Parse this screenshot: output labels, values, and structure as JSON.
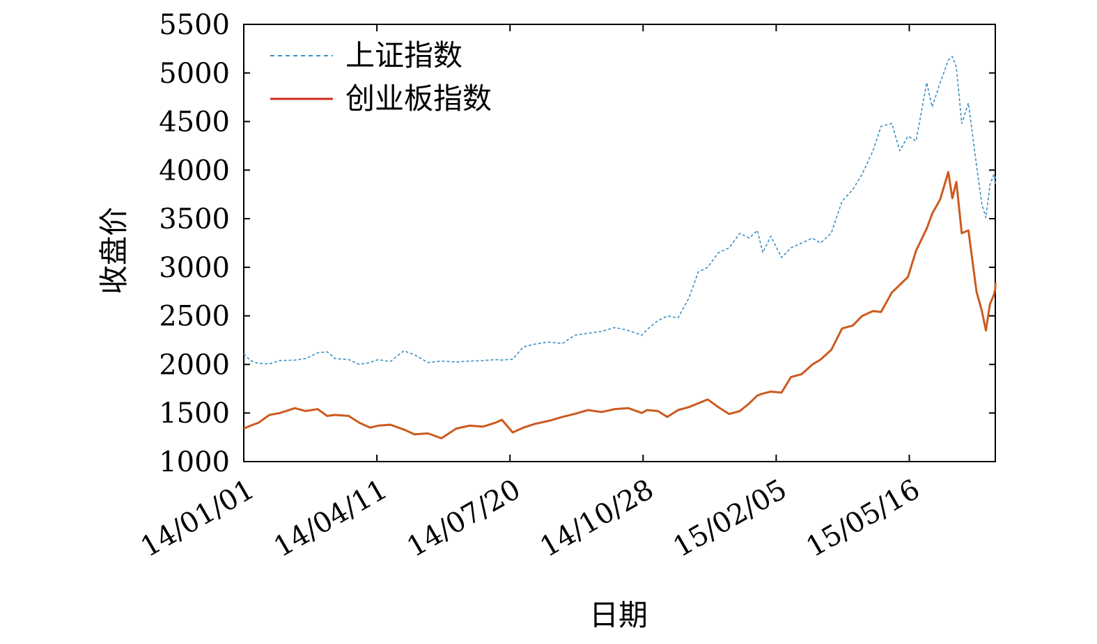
{
  "chart_data": {
    "type": "line",
    "xlabel": "日期",
    "ylabel": "收盘价",
    "ylim": [
      1000,
      5500
    ],
    "y_ticks": [
      1000,
      1500,
      2000,
      2500,
      3000,
      3500,
      4000,
      4500,
      5000,
      5500
    ],
    "x_tick_labels": [
      "14/01/01",
      "14/04/11",
      "14/07/20",
      "14/10/28",
      "15/02/05",
      "15/05/16"
    ],
    "xlim": [
      "2014-01-01",
      "2015-07-07"
    ],
    "grid": false,
    "legend_position": "top-left",
    "series": [
      {
        "name": "上证指数",
        "color": "#3a8fc0",
        "style": "dashed",
        "points": [
          [
            "2014-01-01",
            2110
          ],
          [
            "2014-01-06",
            2040
          ],
          [
            "2014-01-12",
            2010
          ],
          [
            "2014-01-20",
            2005
          ],
          [
            "2014-01-28",
            2040
          ],
          [
            "2014-02-08",
            2045
          ],
          [
            "2014-02-16",
            2060
          ],
          [
            "2014-02-25",
            2120
          ],
          [
            "2014-03-04",
            2130
          ],
          [
            "2014-03-10",
            2060
          ],
          [
            "2014-03-20",
            2050
          ],
          [
            "2014-03-28",
            2000
          ],
          [
            "2014-04-05",
            2020
          ],
          [
            "2014-04-11",
            2050
          ],
          [
            "2014-04-20",
            2030
          ],
          [
            "2014-04-30",
            2140
          ],
          [
            "2014-05-08",
            2100
          ],
          [
            "2014-05-18",
            2020
          ],
          [
            "2014-05-28",
            2035
          ],
          [
            "2014-06-08",
            2025
          ],
          [
            "2014-06-18",
            2035
          ],
          [
            "2014-06-28",
            2040
          ],
          [
            "2014-07-07",
            2050
          ],
          [
            "2014-07-12",
            2045
          ],
          [
            "2014-07-20",
            2055
          ],
          [
            "2014-07-28",
            2180
          ],
          [
            "2014-08-06",
            2210
          ],
          [
            "2014-08-16",
            2230
          ],
          [
            "2014-08-26",
            2215
          ],
          [
            "2014-09-04",
            2300
          ],
          [
            "2014-09-14",
            2320
          ],
          [
            "2014-09-24",
            2340
          ],
          [
            "2014-10-04",
            2380
          ],
          [
            "2014-10-14",
            2350
          ],
          [
            "2014-10-24",
            2300
          ],
          [
            "2014-10-28",
            2360
          ],
          [
            "2014-11-05",
            2450
          ],
          [
            "2014-11-12",
            2500
          ],
          [
            "2014-11-20",
            2480
          ],
          [
            "2014-11-28",
            2680
          ],
          [
            "2014-12-05",
            2950
          ],
          [
            "2014-12-12",
            3000
          ],
          [
            "2014-12-20",
            3150
          ],
          [
            "2014-12-28",
            3200
          ],
          [
            "2015-01-05",
            3350
          ],
          [
            "2015-01-12",
            3300
          ],
          [
            "2015-01-18",
            3380
          ],
          [
            "2015-01-22",
            3150
          ],
          [
            "2015-01-28",
            3320
          ],
          [
            "2015-02-05",
            3100
          ],
          [
            "2015-02-12",
            3200
          ],
          [
            "2015-02-20",
            3250
          ],
          [
            "2015-02-28",
            3300
          ],
          [
            "2015-03-06",
            3250
          ],
          [
            "2015-03-14",
            3350
          ],
          [
            "2015-03-22",
            3680
          ],
          [
            "2015-03-30",
            3800
          ],
          [
            "2015-04-06",
            3960
          ],
          [
            "2015-04-14",
            4200
          ],
          [
            "2015-04-20",
            4450
          ],
          [
            "2015-04-28",
            4480
          ],
          [
            "2015-05-04",
            4200
          ],
          [
            "2015-05-10",
            4350
          ],
          [
            "2015-05-16",
            4300
          ],
          [
            "2015-05-24",
            4900
          ],
          [
            "2015-05-28",
            4650
          ],
          [
            "2015-06-03",
            4900
          ],
          [
            "2015-06-09",
            5130
          ],
          [
            "2015-06-12",
            5170
          ],
          [
            "2015-06-15",
            5060
          ],
          [
            "2015-06-19",
            4480
          ],
          [
            "2015-06-24",
            4690
          ],
          [
            "2015-06-30",
            4050
          ],
          [
            "2015-07-04",
            3650
          ],
          [
            "2015-07-07",
            3510
          ],
          [
            "2015-07-10",
            3850
          ],
          [
            "2015-07-13",
            3960
          ],
          [
            "2015-07-16",
            3850
          ],
          [
            "2015-07-18",
            3960
          ]
        ]
      },
      {
        "name": "创业板指数",
        "color": "#cc5a1e",
        "style": "solid",
        "points": [
          [
            "2014-01-01",
            1340
          ],
          [
            "2014-01-06",
            1370
          ],
          [
            "2014-01-12",
            1400
          ],
          [
            "2014-01-20",
            1480
          ],
          [
            "2014-01-28",
            1500
          ],
          [
            "2014-02-08",
            1550
          ],
          [
            "2014-02-16",
            1520
          ],
          [
            "2014-02-25",
            1540
          ],
          [
            "2014-03-04",
            1470
          ],
          [
            "2014-03-10",
            1480
          ],
          [
            "2014-03-20",
            1470
          ],
          [
            "2014-03-28",
            1400
          ],
          [
            "2014-04-05",
            1350
          ],
          [
            "2014-04-11",
            1370
          ],
          [
            "2014-04-20",
            1380
          ],
          [
            "2014-04-30",
            1330
          ],
          [
            "2014-05-08",
            1280
          ],
          [
            "2014-05-18",
            1290
          ],
          [
            "2014-05-28",
            1240
          ],
          [
            "2014-06-08",
            1340
          ],
          [
            "2014-06-18",
            1370
          ],
          [
            "2014-06-28",
            1360
          ],
          [
            "2014-07-07",
            1400
          ],
          [
            "2014-07-12",
            1430
          ],
          [
            "2014-07-20",
            1300
          ],
          [
            "2014-07-28",
            1350
          ],
          [
            "2014-08-06",
            1390
          ],
          [
            "2014-08-16",
            1420
          ],
          [
            "2014-08-26",
            1460
          ],
          [
            "2014-09-04",
            1490
          ],
          [
            "2014-09-14",
            1530
          ],
          [
            "2014-09-24",
            1510
          ],
          [
            "2014-10-04",
            1540
          ],
          [
            "2014-10-14",
            1550
          ],
          [
            "2014-10-24",
            1500
          ],
          [
            "2014-10-28",
            1530
          ],
          [
            "2014-11-05",
            1520
          ],
          [
            "2014-11-12",
            1460
          ],
          [
            "2014-11-20",
            1530
          ],
          [
            "2014-11-28",
            1560
          ],
          [
            "2014-12-05",
            1600
          ],
          [
            "2014-12-12",
            1640
          ],
          [
            "2014-12-20",
            1560
          ],
          [
            "2014-12-28",
            1490
          ],
          [
            "2015-01-05",
            1520
          ],
          [
            "2015-01-12",
            1600
          ],
          [
            "2015-01-18",
            1680
          ],
          [
            "2015-01-22",
            1700
          ],
          [
            "2015-01-28",
            1720
          ],
          [
            "2015-02-05",
            1710
          ],
          [
            "2015-02-12",
            1870
          ],
          [
            "2015-02-20",
            1900
          ],
          [
            "2015-02-28",
            2000
          ],
          [
            "2015-03-06",
            2050
          ],
          [
            "2015-03-14",
            2150
          ],
          [
            "2015-03-22",
            2370
          ],
          [
            "2015-03-30",
            2400
          ],
          [
            "2015-04-06",
            2500
          ],
          [
            "2015-04-14",
            2550
          ],
          [
            "2015-04-20",
            2540
          ],
          [
            "2015-04-28",
            2740
          ],
          [
            "2015-05-04",
            2820
          ],
          [
            "2015-05-10",
            2900
          ],
          [
            "2015-05-16",
            3170
          ],
          [
            "2015-05-24",
            3400
          ],
          [
            "2015-05-28",
            3550
          ],
          [
            "2015-06-03",
            3700
          ],
          [
            "2015-06-09",
            3980
          ],
          [
            "2015-06-12",
            3710
          ],
          [
            "2015-06-15",
            3880
          ],
          [
            "2015-06-19",
            3350
          ],
          [
            "2015-06-24",
            3380
          ],
          [
            "2015-06-30",
            2750
          ],
          [
            "2015-07-04",
            2550
          ],
          [
            "2015-07-07",
            2350
          ],
          [
            "2015-07-10",
            2620
          ],
          [
            "2015-07-13",
            2720
          ],
          [
            "2015-07-16",
            2780
          ],
          [
            "2015-07-18",
            2840
          ]
        ]
      }
    ]
  }
}
